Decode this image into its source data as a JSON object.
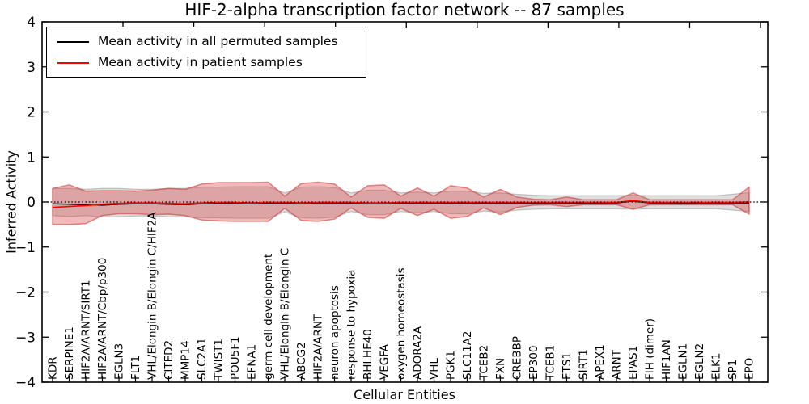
{
  "figure": {
    "title": "HIF-2-alpha transcription factor network -- 87 samples",
    "xlabel": "Cellular Entities",
    "ylabel": "Inferred Activity"
  },
  "legend": {
    "items": [
      {
        "label": "Mean activity in all permuted samples",
        "color": "#000000"
      },
      {
        "label": "Mean activity in patient samples",
        "color": "#ff0000"
      }
    ]
  },
  "chart_data": {
    "type": "line",
    "title": "HIF-2-alpha transcription factor network -- 87 samples",
    "xlabel": "Cellular Entities",
    "ylabel": "Inferred Activity",
    "ylim": [
      -4,
      4
    ],
    "yticks": [
      "4",
      "3",
      "2",
      "1",
      "0",
      "−1",
      "−2",
      "−3",
      "−4"
    ],
    "grid": false,
    "legend_position": "upper left",
    "categories": [
      "KDR",
      "SERPINE1",
      "HIF2A/ARNT/SIRT1",
      "HIF2A/ARNT/Cbp/p300",
      "EGLN3",
      "FLT1",
      "VHL/Elongin B/Elongin C/HIF2A",
      "CITED2",
      "MMP14",
      "SLC2A1",
      "TWIST1",
      "POU5F1",
      "EFNA1",
      "germ cell development",
      "VHL/Elongin B/Elongin C",
      "ABCG2",
      "HIF2A/ARNT",
      "neuron apoptosis",
      "response to hypoxia",
      "BHLHE40",
      "VEGFA",
      "oxygen homeostasis",
      "ADORA2A",
      "VHL",
      "PGK1",
      "SLC11A2",
      "TCEB2",
      "FXN",
      "CREBBP",
      "EP300",
      "TCEB1",
      "ETS1",
      "SIRT1",
      "APEX1",
      "ARNT",
      "EPAS1",
      "FIH (dimer)",
      "HIF1AN",
      "EGLN1",
      "EGLN2",
      "ELK1",
      "SP1",
      "EPO"
    ],
    "series": [
      {
        "name": "Mean activity in all permuted samples",
        "color": "#000000",
        "line": "solid",
        "width": 1.4,
        "values": [
          -0.04,
          -0.05,
          -0.06,
          -0.07,
          -0.05,
          -0.04,
          -0.04,
          -0.05,
          -0.06,
          -0.04,
          -0.03,
          -0.03,
          -0.04,
          -0.03,
          -0.03,
          -0.03,
          -0.02,
          -0.02,
          -0.03,
          -0.03,
          -0.03,
          -0.02,
          -0.03,
          -0.02,
          -0.03,
          -0.03,
          -0.02,
          -0.03,
          -0.02,
          -0.03,
          -0.02,
          -0.02,
          -0.03,
          -0.02,
          -0.02,
          0.02,
          -0.02,
          -0.02,
          -0.03,
          -0.02,
          -0.02,
          -0.02,
          -0.02
        ]
      },
      {
        "name": "Mean activity in patient samples",
        "color": "#ff0000",
        "line": "solid",
        "width": 1.7,
        "values": [
          -0.12,
          -0.1,
          -0.08,
          -0.05,
          -0.03,
          -0.02,
          -0.02,
          -0.03,
          -0.04,
          -0.02,
          -0.01,
          -0.01,
          -0.02,
          -0.01,
          -0.01,
          -0.02,
          -0.01,
          -0.01,
          -0.01,
          -0.02,
          -0.02,
          -0.01,
          -0.01,
          -0.01,
          -0.01,
          -0.01,
          -0.01,
          -0.01,
          -0.01,
          -0.01,
          -0.01,
          -0.01,
          -0.01,
          -0.01,
          -0.01,
          0.03,
          -0.01,
          -0.01,
          -0.01,
          -0.01,
          -0.01,
          -0.01,
          0.0
        ]
      },
      {
        "name": "zero reference",
        "color": "#000000",
        "line": "dotted",
        "width": 1.3,
        "const": 0
      }
    ],
    "bands": [
      {
        "name": "permuted-activity-range",
        "fill": "#a8a8a8",
        "opacity": 0.38,
        "edge": "#8f8f8f",
        "edge_opacity": 0.5,
        "edge_width": 1.2,
        "upper": [
          0.3,
          0.3,
          0.28,
          0.3,
          0.3,
          0.28,
          0.28,
          0.3,
          0.3,
          0.33,
          0.33,
          0.34,
          0.34,
          0.34,
          0.2,
          0.33,
          0.34,
          0.32,
          0.2,
          0.26,
          0.26,
          0.2,
          0.22,
          0.2,
          0.24,
          0.24,
          0.19,
          0.2,
          0.17,
          0.15,
          0.14,
          0.14,
          0.14,
          0.14,
          0.14,
          0.15,
          0.14,
          0.14,
          0.14,
          0.14,
          0.14,
          0.17,
          0.21
        ],
        "lower": [
          -0.3,
          -0.32,
          -0.3,
          -0.33,
          -0.33,
          -0.31,
          -0.31,
          -0.33,
          -0.33,
          -0.35,
          -0.35,
          -0.36,
          -0.36,
          -0.36,
          -0.22,
          -0.35,
          -0.36,
          -0.34,
          -0.21,
          -0.28,
          -0.28,
          -0.21,
          -0.24,
          -0.21,
          -0.26,
          -0.26,
          -0.2,
          -0.22,
          -0.18,
          -0.16,
          -0.15,
          -0.15,
          -0.15,
          -0.15,
          -0.15,
          -0.16,
          -0.15,
          -0.15,
          -0.15,
          -0.15,
          -0.15,
          -0.18,
          -0.21
        ]
      },
      {
        "name": "patient-activity-range",
        "fill": "#d94040",
        "opacity": 0.37,
        "edge": "#c83232",
        "edge_opacity": 0.55,
        "edge_width": 1.5,
        "upper": [
          0.3,
          0.38,
          0.24,
          0.25,
          0.25,
          0.24,
          0.26,
          0.3,
          0.28,
          0.4,
          0.43,
          0.43,
          0.43,
          0.44,
          0.13,
          0.41,
          0.44,
          0.4,
          0.11,
          0.36,
          0.38,
          0.13,
          0.31,
          0.13,
          0.36,
          0.31,
          0.11,
          0.28,
          0.11,
          0.06,
          0.05,
          0.11,
          0.05,
          0.05,
          0.05,
          0.2,
          0.05,
          0.05,
          0.05,
          0.05,
          0.05,
          0.05,
          0.33
        ],
        "lower": [
          -0.5,
          -0.5,
          -0.48,
          -0.3,
          -0.26,
          -0.26,
          -0.28,
          -0.27,
          -0.3,
          -0.4,
          -0.42,
          -0.43,
          -0.43,
          -0.43,
          -0.14,
          -0.41,
          -0.43,
          -0.38,
          -0.13,
          -0.34,
          -0.36,
          -0.14,
          -0.3,
          -0.16,
          -0.36,
          -0.32,
          -0.13,
          -0.28,
          -0.12,
          -0.07,
          -0.06,
          -0.1,
          -0.06,
          -0.06,
          -0.06,
          -0.16,
          -0.06,
          -0.06,
          -0.06,
          -0.06,
          -0.06,
          -0.06,
          -0.27
        ]
      }
    ]
  }
}
